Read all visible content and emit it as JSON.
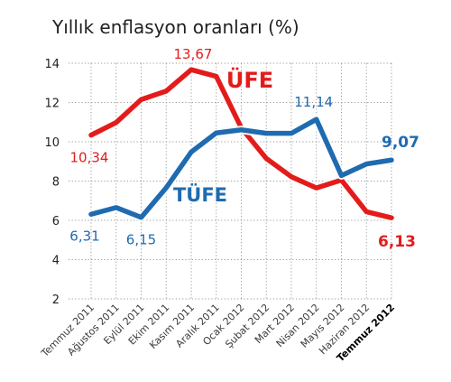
{
  "chart_data": {
    "type": "line",
    "title": "Yıllık enflasyon oranları (%)",
    "xlabel": "",
    "ylabel": "",
    "ylim": [
      2,
      14
    ],
    "yticks": [
      "2",
      "4",
      "6",
      "8",
      "10",
      "12",
      "14"
    ],
    "grid": "y-major-dotted",
    "categories": [
      "Temmuz 2011",
      "Ağustos 2011",
      "Eylül 2011",
      "Ekim 2011",
      "Kasım 2011",
      "Aralık 2011",
      "Ocak 2012",
      "Şubat 2012",
      "Mart 2012",
      "Nisan 2012",
      "Mayıs 2012",
      "Haziran 2012",
      "Temmuz 2012"
    ],
    "highlight_category": "Temmuz 2012",
    "series": [
      {
        "name": "ÜFE",
        "color": "#e41b1b",
        "values": [
          10.34,
          10.98,
          12.15,
          12.58,
          13.67,
          13.33,
          10.71,
          9.15,
          8.22,
          7.65,
          8.05,
          6.44,
          6.13
        ],
        "labels": [
          {
            "index": 0,
            "text": "10,34"
          },
          {
            "index": 4,
            "text": "13,67"
          },
          {
            "index": 12,
            "text": "6,13"
          }
        ]
      },
      {
        "name": "TÜFE",
        "color": "#1f6bb0",
        "values": [
          6.31,
          6.65,
          6.15,
          7.66,
          9.48,
          10.45,
          10.61,
          10.43,
          10.43,
          11.14,
          8.28,
          8.87,
          9.07
        ],
        "labels": [
          {
            "index": 0,
            "text": "6,31"
          },
          {
            "index": 2,
            "text": "6,15"
          },
          {
            "index": 9,
            "text": "11,14"
          },
          {
            "index": 12,
            "text": "9,07"
          }
        ]
      }
    ]
  }
}
